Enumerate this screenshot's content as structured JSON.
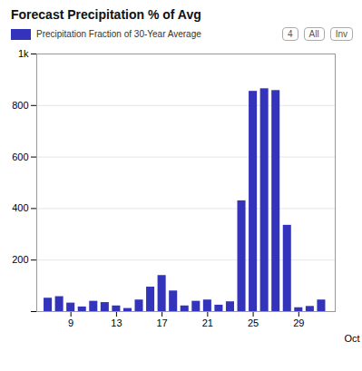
{
  "chart_data": {
    "type": "bar",
    "title": "Forecast Precipitation % of Avg",
    "xlabel": "Oct",
    "x": [
      7,
      8,
      9,
      10,
      11,
      12,
      13,
      14,
      15,
      16,
      17,
      18,
      19,
      20,
      21,
      22,
      23,
      24,
      25,
      26,
      27,
      28,
      29,
      30,
      31
    ],
    "series": [
      {
        "name": "Precipitation Fraction of 30-Year Average",
        "color": "#3333bb",
        "values": [
          52,
          58,
          33,
          18,
          40,
          35,
          22,
          12,
          45,
          95,
          140,
          80,
          22,
          40,
          45,
          25,
          38,
          430,
          855,
          865,
          858,
          335,
          15,
          20,
          45
        ]
      }
    ],
    "xlim": [
      6.0,
      32.2
    ],
    "xticks": [
      9,
      13,
      17,
      21,
      25,
      29
    ],
    "ylim": [
      0,
      1000
    ],
    "yticks": [
      {
        "value": 0,
        "label": ""
      },
      200,
      400,
      600,
      800,
      {
        "value": 1000,
        "label": "1k"
      }
    ],
    "grid": true,
    "annotations": [
      "4",
      "All",
      "Inv"
    ]
  }
}
